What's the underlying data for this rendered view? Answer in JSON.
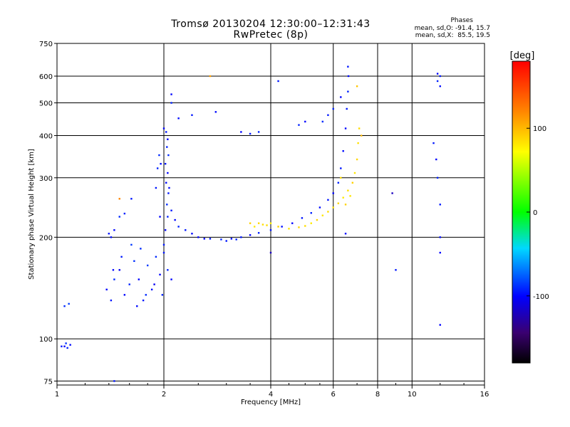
{
  "header": {
    "title_line1": "Tromsø 20130204 12:30:00–12:31:43",
    "title_line2": "RwPretec (8p)",
    "stats_title": "Phases",
    "stats_o": "mean, sd,O: -91.4, 15.7",
    "stats_x": "mean, sd,X:  85.5, 19.5"
  },
  "chart_data": {
    "type": "scatter",
    "title": "Tromsø 20130204 12:30:00–12:31:43",
    "subtitle": "RwPretec (8p)",
    "xlabel": "Frequency [MHz]",
    "ylabel": "Stationary phase Virtual Height [km]",
    "xscale": "log",
    "yscale": "log",
    "xlim": [
      1,
      16
    ],
    "ylim": [
      73,
      750
    ],
    "x_ticks": [
      1,
      2,
      4,
      6,
      8,
      10,
      16
    ],
    "y_ticks": [
      75,
      100,
      200,
      300,
      400,
      500,
      600,
      750
    ],
    "grid": true,
    "colorbar": {
      "label": "[deg]",
      "ticks": [
        -100,
        0,
        100
      ],
      "range": [
        -180,
        180
      ]
    },
    "series": [
      {
        "mode": "O",
        "points": [
          [
            1.03,
            95,
            -95
          ],
          [
            1.05,
            95,
            -100
          ],
          [
            1.07,
            94,
            -92
          ],
          [
            1.09,
            96,
            -98
          ],
          [
            1.06,
            97,
            -88
          ],
          [
            1.05,
            125,
            -90
          ],
          [
            1.08,
            127,
            -85
          ],
          [
            1.38,
            140,
            -100
          ],
          [
            1.42,
            130,
            -95
          ],
          [
            1.45,
            150,
            -90
          ],
          [
            1.5,
            160,
            -105
          ],
          [
            1.55,
            135,
            -100
          ],
          [
            1.6,
            145,
            -92
          ],
          [
            1.65,
            170,
            -88
          ],
          [
            1.7,
            150,
            -100
          ],
          [
            1.75,
            130,
            -95
          ],
          [
            1.8,
            165,
            -85
          ],
          [
            1.85,
            140,
            -98
          ],
          [
            1.9,
            175,
            -90
          ],
          [
            1.95,
            155,
            -100
          ],
          [
            2.0,
            180,
            -95
          ],
          [
            2.05,
            160,
            -92
          ],
          [
            2.1,
            150,
            -100
          ],
          [
            1.72,
            185,
            -90
          ],
          [
            1.62,
            190,
            -86
          ],
          [
            1.52,
            175,
            -94
          ],
          [
            1.44,
            160,
            -100
          ],
          [
            1.68,
            125,
            -98
          ],
          [
            1.78,
            135,
            -90
          ],
          [
            1.88,
            145,
            -105
          ],
          [
            1.98,
            135,
            -92
          ],
          [
            1.4,
            205,
            -95
          ],
          [
            1.45,
            210,
            -100
          ],
          [
            1.5,
            230,
            -90
          ],
          [
            1.55,
            235,
            -92
          ],
          [
            1.42,
            200,
            -98
          ],
          [
            2.0,
            190,
            -95
          ],
          [
            2.02,
            210,
            -100
          ],
          [
            2.05,
            230,
            -92
          ],
          [
            2.04,
            250,
            -90
          ],
          [
            2.06,
            270,
            -95
          ],
          [
            2.03,
            290,
            -98
          ],
          [
            2.05,
            310,
            -100
          ],
          [
            2.02,
            330,
            -95
          ],
          [
            2.06,
            350,
            -90
          ],
          [
            2.04,
            370,
            -92
          ],
          [
            2.05,
            390,
            -100
          ],
          [
            2.03,
            410,
            -95
          ],
          [
            2.07,
            280,
            -98
          ],
          [
            1.95,
            230,
            -100
          ],
          [
            1.9,
            280,
            -95
          ],
          [
            1.92,
            320,
            -92
          ],
          [
            1.94,
            350,
            -90
          ],
          [
            1.96,
            330,
            -98
          ],
          [
            2.1,
            240,
            -95
          ],
          [
            2.15,
            225,
            -100
          ],
          [
            2.2,
            215,
            -92
          ],
          [
            2.3,
            210,
            -95
          ],
          [
            2.4,
            205,
            -98
          ],
          [
            2.5,
            200,
            -100
          ],
          [
            2.7,
            198,
            -95
          ],
          [
            2.9,
            197,
            -92
          ],
          [
            3.1,
            198,
            -98
          ],
          [
            3.3,
            200,
            -95
          ],
          [
            3.5,
            203,
            -100
          ],
          [
            3.7,
            206,
            -92
          ],
          [
            4.0,
            210,
            -95
          ],
          [
            4.3,
            215,
            -98
          ],
          [
            4.6,
            220,
            -100
          ],
          [
            4.9,
            228,
            -95
          ],
          [
            5.2,
            236,
            -92
          ],
          [
            5.5,
            245,
            -98
          ],
          [
            5.8,
            258,
            -95
          ],
          [
            6.0,
            270,
            -100
          ],
          [
            6.2,
            290,
            -92
          ],
          [
            6.3,
            320,
            -95
          ],
          [
            6.4,
            360,
            -98
          ],
          [
            6.5,
            420,
            -100
          ],
          [
            6.55,
            480,
            -95
          ],
          [
            6.6,
            540,
            -92
          ],
          [
            6.62,
            600,
            -98
          ],
          [
            6.6,
            640,
            -95
          ],
          [
            6.3,
            520,
            -100
          ],
          [
            6.0,
            480,
            -92
          ],
          [
            5.8,
            460,
            -95
          ],
          [
            5.6,
            440,
            -90
          ],
          [
            2.1,
            530,
            -100
          ],
          [
            2.1,
            500,
            -92
          ],
          [
            2.4,
            460,
            -95
          ],
          [
            2.8,
            470,
            -98
          ],
          [
            3.3,
            410,
            -100
          ],
          [
            3.5,
            405,
            -95
          ],
          [
            3.7,
            410,
            -92
          ],
          [
            4.2,
            580,
            -95
          ],
          [
            2.6,
            198,
            -100
          ],
          [
            3.0,
            195,
            -95
          ],
          [
            3.2,
            197,
            -92
          ],
          [
            11.8,
            610,
            -100
          ],
          [
            12.0,
            600,
            -95
          ],
          [
            11.8,
            580,
            -92
          ],
          [
            12.0,
            560,
            -98
          ],
          [
            11.5,
            380,
            -95
          ],
          [
            11.7,
            340,
            -100
          ],
          [
            11.8,
            300,
            -92
          ],
          [
            12.0,
            250,
            -95
          ],
          [
            12.0,
            200,
            -98
          ],
          [
            12.0,
            180,
            -100
          ],
          [
            8.8,
            270,
            -120
          ],
          [
            9.0,
            160,
            -95
          ],
          [
            12.0,
            110,
            -100
          ],
          [
            1.45,
            75,
            -95
          ],
          [
            4.0,
            180,
            -120
          ],
          [
            6.5,
            205,
            -100
          ],
          [
            5.0,
            440,
            -100
          ],
          [
            4.8,
            430,
            -92
          ],
          [
            1.62,
            260,
            -95
          ],
          [
            2.0,
            420,
            -100
          ],
          [
            2.2,
            450,
            -98
          ]
        ]
      },
      {
        "mode": "X",
        "points": [
          [
            3.6,
            215,
            80
          ],
          [
            3.8,
            218,
            85
          ],
          [
            4.0,
            220,
            78
          ],
          [
            4.2,
            215,
            90
          ],
          [
            4.5,
            212,
            82
          ],
          [
            4.8,
            214,
            88
          ],
          [
            5.0,
            216,
            85
          ],
          [
            5.2,
            220,
            80
          ],
          [
            5.4,
            225,
            88
          ],
          [
            5.6,
            232,
            82
          ],
          [
            5.8,
            238,
            86
          ],
          [
            6.0,
            245,
            84
          ],
          [
            6.2,
            252,
            88
          ],
          [
            6.4,
            262,
            80
          ],
          [
            6.6,
            275,
            85
          ],
          [
            6.8,
            290,
            90
          ],
          [
            6.9,
            310,
            82
          ],
          [
            7.0,
            340,
            88
          ],
          [
            7.05,
            380,
            84
          ],
          [
            7.1,
            420,
            86
          ],
          [
            6.5,
            250,
            90
          ],
          [
            6.7,
            265,
            82
          ],
          [
            6.3,
            300,
            85
          ],
          [
            7.0,
            560,
            95
          ],
          [
            7.2,
            400,
            100
          ],
          [
            3.5,
            220,
            90
          ],
          [
            3.9,
            217,
            85
          ],
          [
            2.7,
            600,
            110
          ],
          [
            3.7,
            220,
            88
          ],
          [
            1.5,
            260,
            120
          ]
        ]
      }
    ]
  }
}
